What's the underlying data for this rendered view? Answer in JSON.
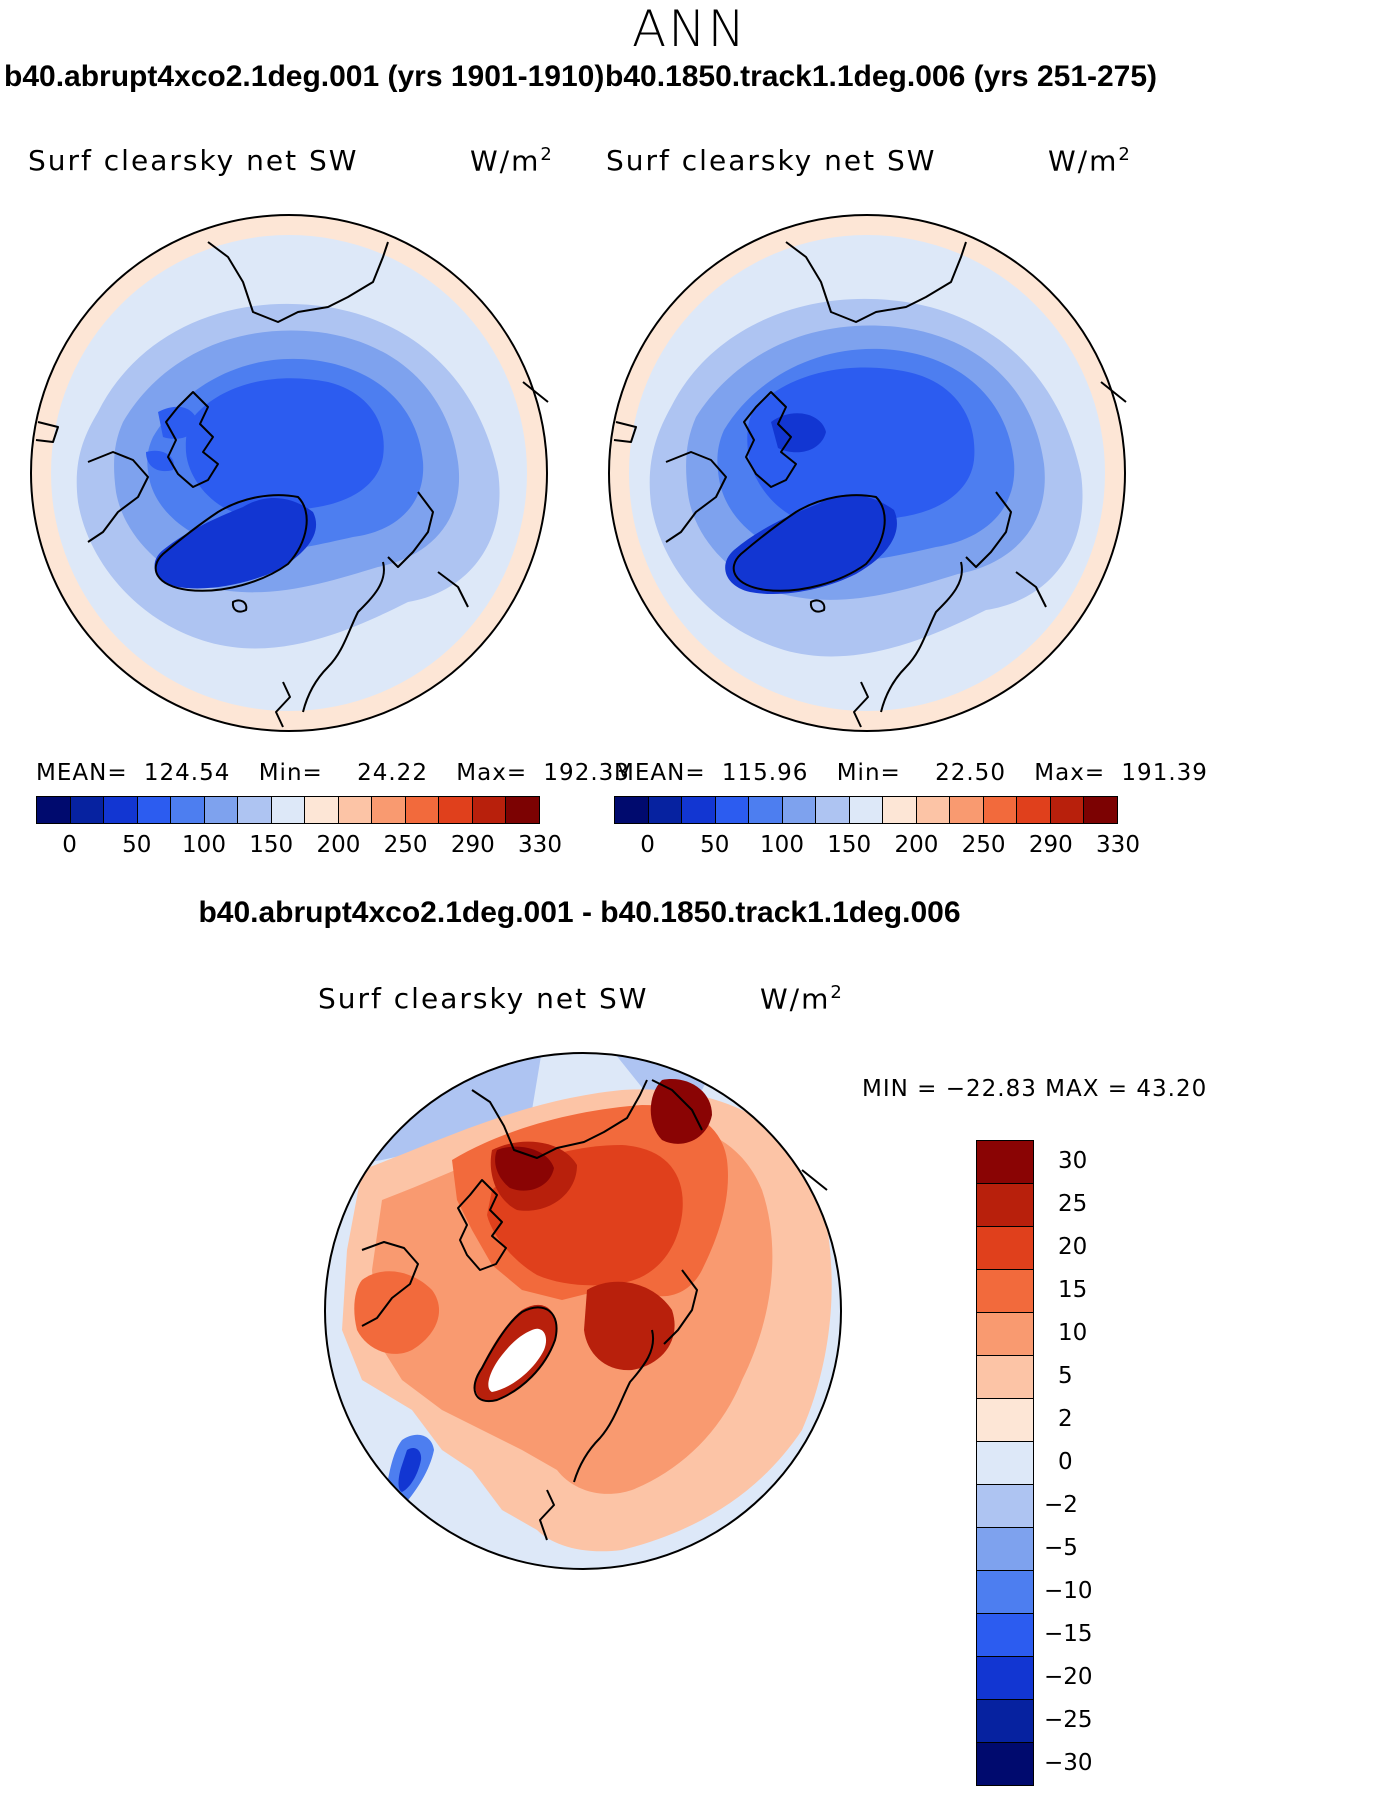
{
  "season": "ANN",
  "panels": [
    {
      "case_title": "b40.abrupt4xco2.1deg.001 (yrs 1901-1910)",
      "variable": "Surf clearsky net SW",
      "units_base": "W/m",
      "units_exp": "2",
      "mean_label": "MEAN=",
      "mean_value": "124.54",
      "min_label": "Min=",
      "min_value": "24.22",
      "max_label": "Max=",
      "max_value": "192.33"
    },
    {
      "case_title": "b40.1850.track1.1deg.006 (yrs 251-275)",
      "variable": "Surf clearsky net SW",
      "units_base": "W/m",
      "units_exp": "2",
      "mean_label": "MEAN=",
      "mean_value": "115.96",
      "min_label": "Min=",
      "min_value": "22.50",
      "max_label": "Max=",
      "max_value": "191.39"
    }
  ],
  "abs_colorbar": {
    "colors": [
      "#000a6e",
      "#0622a0",
      "#1236d2",
      "#2c5cf0",
      "#4d7ef0",
      "#7ea2ee",
      "#aec4f2",
      "#dde8f8",
      "#fde6d6",
      "#fcc4a6",
      "#f99a70",
      "#f26a3c",
      "#e0401c",
      "#b8200c",
      "#7c0202"
    ],
    "tick_labels": [
      "0",
      "50",
      "100",
      "150",
      "200",
      "250",
      "290",
      "330"
    ]
  },
  "diff": {
    "title": "b40.abrupt4xco2.1deg.001 - b40.1850.track1.1deg.006",
    "variable": "Surf clearsky net SW",
    "units_base": "W/m",
    "units_exp": "2",
    "minmax_text": "MIN = −22.83 MAX =   43.20",
    "colorbar": {
      "colors": [
        "#8a0404",
        "#b8200c",
        "#e0401c",
        "#f26a3c",
        "#f99a70",
        "#fcc4a6",
        "#fde6d6",
        "#dde8f8",
        "#aec4f2",
        "#7ea2ee",
        "#4d7ef0",
        "#2c5cf0",
        "#1236d2",
        "#0622a0",
        "#000a6e"
      ],
      "tick_labels": [
        "30",
        "25",
        "20",
        "15",
        "10",
        "5",
        "2",
        "0",
        "−2",
        "−5",
        "−10",
        "−15",
        "−20",
        "−25",
        "−30"
      ]
    }
  }
}
